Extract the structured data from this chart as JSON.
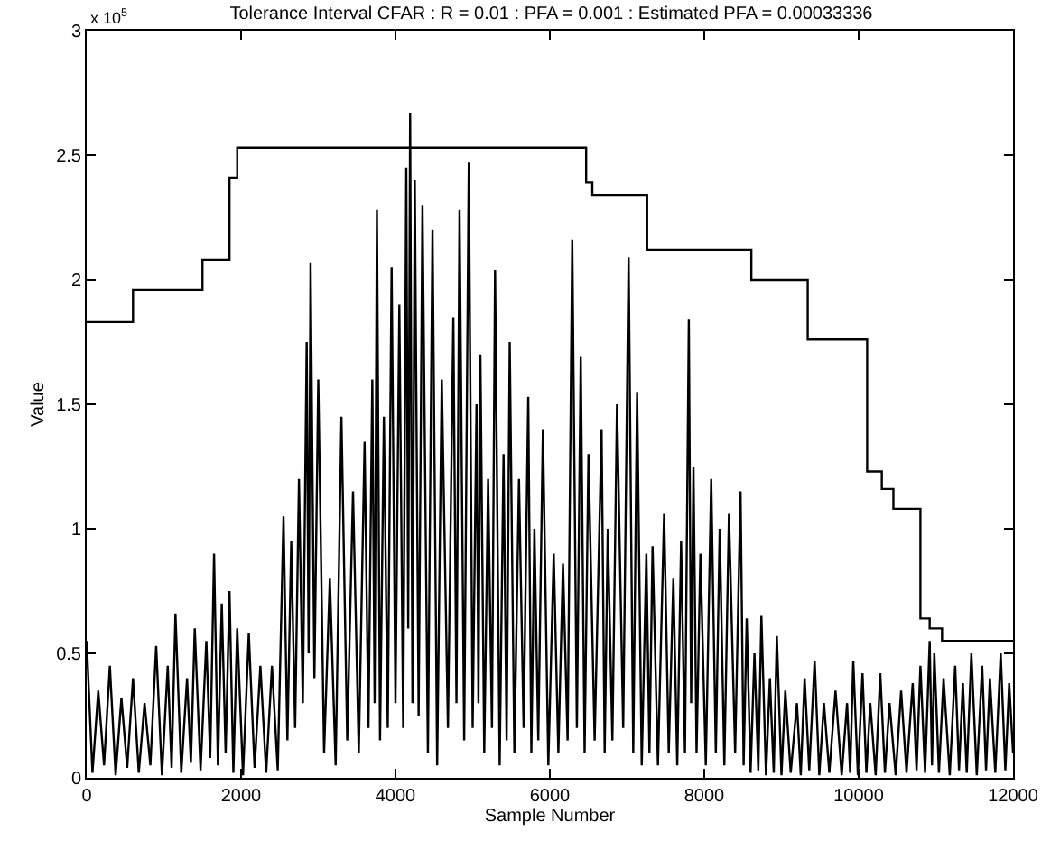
{
  "chart_data": {
    "type": "line",
    "title": "Tolerance Interval CFAR : R = 0.01 : PFA = 0.001 : Estimated PFA = 0.00033336",
    "xlabel": "Sample Number",
    "ylabel": "Value",
    "annotations": [
      "x 10$^{5}$"
    ],
    "xlim": [
      0,
      12000
    ],
    "xticks": [
      0,
      2000,
      4000,
      6000,
      8000,
      10000,
      12000
    ],
    "ylim": [
      0,
      3
    ],
    "yticks": [
      0,
      0.5,
      1,
      1.5,
      2,
      2.5,
      3
    ],
    "series": [
      {
        "color": "#000000",
        "x": [
          0,
          75,
          150,
          225,
          300,
          375,
          450,
          525,
          600,
          675,
          750,
          825,
          900,
          975,
          1050,
          1100,
          1150,
          1225,
          1300,
          1350,
          1400,
          1475,
          1550,
          1600,
          1650,
          1700,
          1750,
          1800,
          1850,
          1900,
          1950,
          2025,
          2100,
          2175,
          2250,
          2325,
          2400,
          2475,
          2550,
          2600,
          2650,
          2700,
          2750,
          2800,
          2850,
          2875,
          2900,
          2950,
          3000,
          3075,
          3150,
          3225,
          3300,
          3375,
          3450,
          3525,
          3600,
          3650,
          3700,
          3730,
          3760,
          3800,
          3850,
          3900,
          3950,
          4000,
          4050,
          4100,
          4140,
          4165,
          4190,
          4220,
          4250,
          4300,
          4350,
          4420,
          4480,
          4540,
          4600,
          4680,
          4750,
          4790,
          4830,
          4890,
          4950,
          5000,
          5050,
          5075,
          5100,
          5150,
          5200,
          5250,
          5290,
          5350,
          5400,
          5440,
          5480,
          5540,
          5600,
          5660,
          5720,
          5760,
          5800,
          5850,
          5910,
          5980,
          6050,
          6110,
          6170,
          6230,
          6290,
          6350,
          6400,
          6450,
          6500,
          6580,
          6670,
          6710,
          6750,
          6810,
          6870,
          6950,
          7020,
          7080,
          7130,
          7190,
          7250,
          7290,
          7330,
          7400,
          7480,
          7540,
          7600,
          7650,
          7700,
          7750,
          7800,
          7830,
          7860,
          7900,
          7950,
          8020,
          8090,
          8150,
          8200,
          8260,
          8320,
          8400,
          8470,
          8510,
          8550,
          8600,
          8650,
          8700,
          8740,
          8800,
          8850,
          8900,
          8940,
          9000,
          9050,
          9120,
          9200,
          9250,
          9300,
          9360,
          9430,
          9490,
          9550,
          9620,
          9700,
          9780,
          9850,
          9890,
          9930,
          9990,
          10050,
          10100,
          10150,
          10220,
          10280,
          10340,
          10400,
          10480,
          10550,
          10620,
          10700,
          10750,
          10800,
          10860,
          10920,
          10950,
          10980,
          11040,
          11100,
          11180,
          11250,
          11300,
          11350,
          11400,
          11460,
          11530,
          11600,
          11650,
          11700,
          11770,
          11840,
          11900,
          11950,
          12000
        ],
        "values": [
          0.55,
          0.02,
          0.35,
          0.05,
          0.45,
          0.01,
          0.32,
          0.04,
          0.4,
          0.02,
          0.3,
          0.05,
          0.53,
          0.01,
          0.45,
          0.04,
          0.66,
          0.02,
          0.4,
          0.06,
          0.6,
          0.03,
          0.55,
          0.08,
          0.9,
          0.05,
          0.7,
          0.1,
          0.75,
          0.02,
          0.6,
          0.01,
          0.58,
          0.04,
          0.45,
          0.02,
          0.45,
          0.03,
          1.05,
          0.15,
          0.95,
          0.2,
          1.2,
          0.3,
          1.75,
          0.5,
          2.07,
          0.4,
          1.6,
          0.1,
          0.8,
          0.05,
          1.45,
          0.15,
          1.15,
          0.1,
          1.35,
          0.2,
          1.6,
          0.3,
          2.28,
          0.15,
          1.45,
          0.2,
          2.05,
          0.3,
          1.9,
          0.2,
          2.45,
          0.6,
          2.67,
          0.3,
          2.4,
          0.25,
          2.3,
          0.1,
          2.2,
          0.05,
          1.6,
          0.2,
          1.85,
          0.3,
          2.28,
          0.15,
          2.47,
          0.2,
          1.5,
          0.3,
          1.7,
          0.1,
          1.2,
          0.2,
          2.04,
          0.05,
          1.3,
          0.15,
          1.75,
          0.1,
          1.2,
          0.2,
          1.53,
          0.1,
          1.0,
          0.15,
          1.4,
          0.05,
          0.9,
          0.1,
          0.86,
          0.15,
          2.16,
          0.2,
          1.69,
          0.1,
          1.3,
          0.15,
          1.4,
          0.1,
          1.0,
          0.15,
          1.5,
          0.2,
          2.09,
          0.1,
          1.55,
          0.05,
          0.9,
          0.1,
          0.93,
          0.05,
          1.06,
          0.1,
          0.8,
          0.05,
          0.95,
          0.1,
          1.84,
          0.3,
          1.25,
          0.1,
          0.9,
          0.05,
          1.2,
          0.1,
          1.0,
          0.05,
          1.06,
          0.1,
          1.15,
          0.05,
          0.64,
          0.02,
          0.5,
          0.03,
          0.65,
          0.01,
          0.4,
          0.02,
          0.57,
          0.01,
          0.35,
          0.02,
          0.3,
          0.01,
          0.4,
          0.03,
          0.47,
          0.01,
          0.3,
          0.02,
          0.35,
          0.01,
          0.3,
          0.02,
          0.47,
          0.01,
          0.42,
          0.02,
          0.3,
          0.01,
          0.42,
          0.02,
          0.3,
          0.01,
          0.35,
          0.02,
          0.38,
          0.03,
          0.45,
          0.02,
          0.55,
          0.05,
          0.5,
          0.02,
          0.4,
          0.01,
          0.45,
          0.03,
          0.38,
          0.02,
          0.5,
          0.01,
          0.45,
          0.03,
          0.4,
          0.02,
          0.5,
          0.03,
          0.38,
          0.1
        ]
      },
      {
        "type": "step",
        "color": "#000000",
        "x": [
          0,
          600,
          1500,
          1850,
          1950,
          6470,
          6550,
          7260,
          8610,
          9340,
          10110,
          10300,
          10450,
          10800,
          10920,
          11080,
          12000
        ],
        "values": [
          1.83,
          1.96,
          2.08,
          2.41,
          2.53,
          2.39,
          2.34,
          2.12,
          2.0,
          1.76,
          1.23,
          1.16,
          1.08,
          0.64,
          0.6,
          0.55,
          0.55
        ]
      }
    ]
  }
}
